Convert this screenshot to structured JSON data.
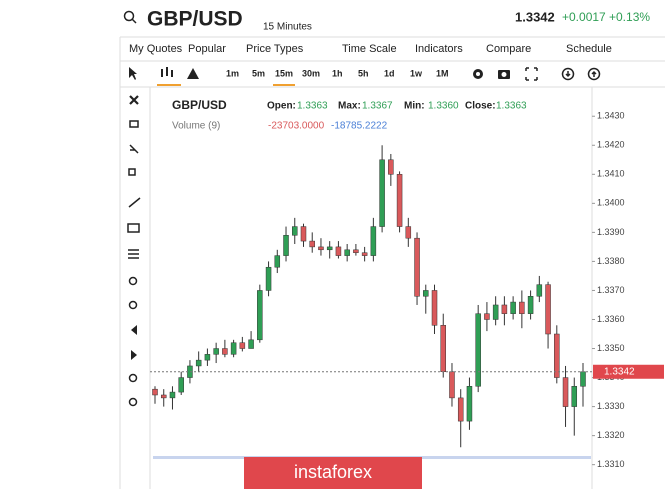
{
  "header": {
    "symbol": "GBP/USD",
    "interval": "15 Minutes",
    "price": "1.3342",
    "change": "+0.0017",
    "change_pct": "+0.13%"
  },
  "menu": [
    "My Quotes",
    "Popular",
    "Price Types",
    "Time Scale",
    "Indicators",
    "Compare",
    "Schedule"
  ],
  "timeframes": [
    "1m",
    "5m",
    "15m",
    "30m",
    "1h",
    "5h",
    "1d",
    "1w",
    "1M"
  ],
  "info": {
    "symbol": "GBP/USD",
    "open_label": "Open:",
    "open": "1.3363",
    "max_label": "Max:",
    "max": "1.3367",
    "min_label": "Min:",
    "min": "1.3360",
    "close_label": "Close:",
    "close": "1.3363",
    "volume_label": "Volume (9)",
    "volume_a": "-23703.0000",
    "volume_b": "-18785.2222"
  },
  "watermark": "instaforex",
  "chart_data": {
    "type": "candlestick",
    "up_color": "#2f9e55",
    "down_color": "#d9595b",
    "ylim": [
      1.3303,
      1.3438
    ],
    "yticks": [
      {
        "value": 1.331,
        "label": "1.3310"
      },
      {
        "value": 1.332,
        "label": "1.3320"
      },
      {
        "value": 1.333,
        "label": "1.3330"
      },
      {
        "value": 1.334,
        "label": "1.3340"
      },
      {
        "value": 1.335,
        "label": "1.3350"
      },
      {
        "value": 1.336,
        "label": "1.3360"
      },
      {
        "value": 1.337,
        "label": "1.3370"
      },
      {
        "value": 1.338,
        "label": "1.3380"
      },
      {
        "value": 1.339,
        "label": "1.3390"
      },
      {
        "value": 1.34,
        "label": "1.3400"
      },
      {
        "value": 1.341,
        "label": "1.3410"
      },
      {
        "value": 1.342,
        "label": "1.3420"
      },
      {
        "value": 1.343,
        "label": "1.3430"
      }
    ],
    "current_price": 1.3342,
    "open": [
      1.3336,
      1.3334,
      1.3333,
      1.3335,
      1.334,
      1.3344,
      1.3346,
      1.3348,
      1.335,
      1.3348,
      1.3352,
      1.335,
      1.3353,
      1.337,
      1.3378,
      1.3382,
      1.3389,
      1.3392,
      1.3387,
      1.3385,
      1.3384,
      1.3385,
      1.3382,
      1.3384,
      1.3383,
      1.3382,
      1.3392,
      1.3415,
      1.341,
      1.3392,
      1.3388,
      1.3368,
      1.337,
      1.3358,
      1.3342,
      1.3333,
      1.3325,
      1.3337,
      1.3362,
      1.336,
      1.3365,
      1.3362,
      1.3366,
      1.3362,
      1.3368,
      1.3372,
      1.3355,
      1.334,
      1.333,
      1.3337
    ],
    "high": [
      1.3337,
      1.3336,
      1.3337,
      1.3342,
      1.3346,
      1.3349,
      1.335,
      1.3352,
      1.3353,
      1.3353,
      1.3354,
      1.3356,
      1.3372,
      1.338,
      1.3384,
      1.3392,
      1.3395,
      1.3393,
      1.339,
      1.3388,
      1.3387,
      1.3387,
      1.3386,
      1.3386,
      1.3385,
      1.3395,
      1.342,
      1.3417,
      1.3411,
      1.3395,
      1.339,
      1.3372,
      1.3372,
      1.3362,
      1.3345,
      1.3336,
      1.334,
      1.3365,
      1.3366,
      1.3368,
      1.3368,
      1.3368,
      1.337,
      1.337,
      1.3375,
      1.3373,
      1.3358,
      1.3344,
      1.334,
      1.3345
    ],
    "low": [
      1.3331,
      1.333,
      1.3329,
      1.3334,
      1.3338,
      1.3342,
      1.3344,
      1.3345,
      1.3347,
      1.3347,
      1.3349,
      1.335,
      1.3352,
      1.3368,
      1.3376,
      1.338,
      1.3386,
      1.3385,
      1.3383,
      1.3382,
      1.3381,
      1.3381,
      1.338,
      1.3382,
      1.338,
      1.338,
      1.339,
      1.3406,
      1.339,
      1.3385,
      1.3365,
      1.3362,
      1.3355,
      1.334,
      1.333,
      1.3316,
      1.3322,
      1.3335,
      1.3356,
      1.3358,
      1.3358,
      1.336,
      1.3357,
      1.336,
      1.3366,
      1.335,
      1.3338,
      1.3323,
      1.332,
      1.333
    ],
    "close": [
      1.3334,
      1.3333,
      1.3335,
      1.334,
      1.3344,
      1.3346,
      1.3348,
      1.335,
      1.3348,
      1.3352,
      1.335,
      1.3353,
      1.337,
      1.3378,
      1.3382,
      1.3389,
      1.3392,
      1.3387,
      1.3385,
      1.3384,
      1.3385,
      1.3382,
      1.3384,
      1.3383,
      1.3382,
      1.3392,
      1.3415,
      1.341,
      1.3392,
      1.3388,
      1.3368,
      1.337,
      1.3358,
      1.3342,
      1.3333,
      1.3325,
      1.3337,
      1.3362,
      1.336,
      1.3365,
      1.3362,
      1.3366,
      1.3362,
      1.3368,
      1.3372,
      1.3355,
      1.334,
      1.333,
      1.3337,
      1.3342
    ]
  }
}
